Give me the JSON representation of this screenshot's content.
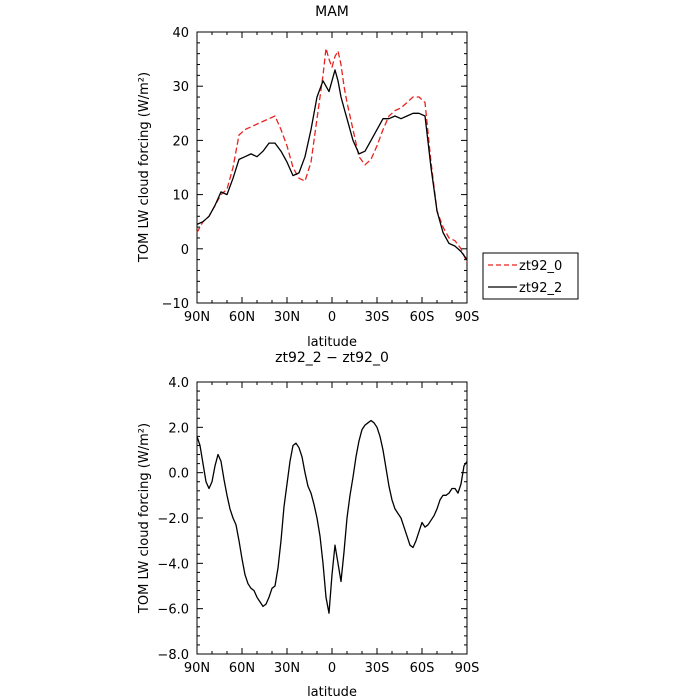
{
  "chart_data": [
    {
      "type": "line",
      "title": "MAM",
      "xlabel": "latitude",
      "ylabel": "TOM LW cloud forcing (W/m²)",
      "xlim": [
        90,
        -90
      ],
      "ylim": [
        -10,
        40
      ],
      "xticks": [
        90,
        60,
        30,
        0,
        -30,
        -60,
        -90
      ],
      "xtick_labels": [
        "90N",
        "60N",
        "30N",
        "0",
        "30S",
        "60S",
        "90S"
      ],
      "yticks": [
        -10,
        0,
        10,
        20,
        30,
        40
      ],
      "ytick_labels": [
        "−10",
        "0",
        "10",
        "20",
        "30",
        "40"
      ],
      "legend": "right",
      "series": [
        {
          "name": "zt92_0",
          "color": "#e8231f",
          "dash": "dashed",
          "x": [
            90,
            86,
            82,
            78,
            74,
            70,
            66,
            62,
            58,
            54,
            50,
            46,
            42,
            38,
            34,
            30,
            26,
            22,
            18,
            14,
            10,
            6,
            4,
            2,
            0,
            -2,
            -4,
            -6,
            -8,
            -10,
            -14,
            -18,
            -22,
            -26,
            -30,
            -34,
            -38,
            -42,
            -46,
            -50,
            -54,
            -58,
            -62,
            -66,
            -70,
            -74,
            -78,
            -82,
            -86,
            -90
          ],
          "y": [
            3,
            5,
            6,
            8,
            10,
            11,
            15,
            21,
            22,
            22.5,
            23,
            23.5,
            24,
            24.5,
            22,
            19,
            15,
            13,
            12.5,
            16,
            24,
            32,
            37,
            35,
            33.5,
            35.5,
            36.5,
            34,
            30,
            27,
            22,
            17,
            15.5,
            16.5,
            19,
            22,
            24.5,
            25.5,
            26,
            27,
            28,
            28,
            27,
            16,
            7,
            4,
            2,
            1.5,
            0,
            -2.5
          ]
        },
        {
          "name": "zt92_2",
          "color": "#000000",
          "dash": "solid",
          "x": [
            90,
            86,
            82,
            78,
            74,
            70,
            66,
            62,
            58,
            54,
            50,
            46,
            42,
            38,
            34,
            30,
            26,
            22,
            18,
            14,
            10,
            6,
            4,
            2,
            0,
            -2,
            -4,
            -6,
            -8,
            -10,
            -14,
            -18,
            -22,
            -26,
            -30,
            -34,
            -38,
            -42,
            -46,
            -50,
            -54,
            -58,
            -62,
            -66,
            -70,
            -74,
            -78,
            -82,
            -86,
            -90
          ],
          "y": [
            4.5,
            5,
            6,
            8,
            10.5,
            10,
            13,
            16.5,
            17,
            17.5,
            17,
            18,
            19.5,
            19.5,
            18,
            16,
            13.5,
            14,
            17,
            22,
            28,
            31,
            30,
            29,
            31,
            33,
            31,
            28,
            26,
            24,
            20,
            17.5,
            18,
            20,
            22,
            24,
            24,
            24.5,
            24,
            24.5,
            25,
            25,
            24.5,
            15,
            7,
            3,
            1,
            0.5,
            -0.5,
            -2
          ]
        }
      ]
    },
    {
      "type": "line",
      "title": "zt92_2 − zt92_0",
      "xlabel": "latitude",
      "ylabel": "TOM LW cloud forcing (W/m²)",
      "xlim": [
        90,
        -90
      ],
      "ylim": [
        -8,
        4
      ],
      "xticks": [
        90,
        60,
        30,
        0,
        -30,
        -60,
        -90
      ],
      "xtick_labels": [
        "90N",
        "60N",
        "30N",
        "0",
        "30S",
        "60S",
        "90S"
      ],
      "yticks": [
        -8,
        -6,
        -4,
        -2,
        0,
        2,
        4
      ],
      "ytick_labels": [
        "−8.0",
        "−6.0",
        "−4.0",
        "−2.0",
        "0.0",
        "2.0",
        "4.0"
      ],
      "series": [
        {
          "color": "#000000",
          "dash": "solid",
          "x": [
            90,
            88,
            86,
            84,
            82,
            80,
            78,
            76,
            74,
            72,
            70,
            68,
            66,
            64,
            62,
            60,
            58,
            56,
            54,
            52,
            50,
            48,
            46,
            44,
            42,
            40,
            38,
            36,
            34,
            32,
            30,
            28,
            26,
            24,
            22,
            20,
            18,
            16,
            14,
            12,
            10,
            8,
            6,
            4,
            2,
            0,
            -2,
            -4,
            -6,
            -8,
            -10,
            -12,
            -14,
            -16,
            -18,
            -20,
            -22,
            -24,
            -26,
            -28,
            -30,
            -32,
            -34,
            -36,
            -38,
            -40,
            -42,
            -44,
            -46,
            -48,
            -50,
            -52,
            -54,
            -56,
            -58,
            -60,
            -62,
            -64,
            -66,
            -68,
            -70,
            -72,
            -74,
            -76,
            -78,
            -80,
            -82,
            -84,
            -86,
            -88,
            -90
          ],
          "y": [
            1.6,
            1.2,
            0.4,
            -0.4,
            -0.7,
            -0.4,
            0.3,
            0.8,
            0.5,
            -0.3,
            -1.0,
            -1.6,
            -2.0,
            -2.3,
            -3.0,
            -3.8,
            -4.5,
            -4.9,
            -5.1,
            -5.2,
            -5.5,
            -5.7,
            -5.9,
            -5.8,
            -5.5,
            -5.1,
            -5.0,
            -4.2,
            -3.0,
            -1.5,
            -0.5,
            0.5,
            1.2,
            1.3,
            1.1,
            0.7,
            0.0,
            -0.6,
            -0.9,
            -1.4,
            -2.0,
            -2.8,
            -4.0,
            -5.5,
            -6.2,
            -4.5,
            -3.2,
            -4.0,
            -4.8,
            -3.5,
            -2.0,
            -1.0,
            -0.2,
            0.7,
            1.4,
            1.9,
            2.1,
            2.2,
            2.3,
            2.2,
            2.0,
            1.6,
            1.0,
            0.2,
            -0.6,
            -1.2,
            -1.6,
            -1.8,
            -2.0,
            -2.4,
            -2.8,
            -3.2,
            -3.3,
            -3.0,
            -2.6,
            -2.2,
            -2.4,
            -2.3,
            -2.1,
            -1.9,
            -1.6,
            -1.2,
            -1.0,
            -1.0,
            -0.9,
            -0.7,
            -0.7,
            -0.9,
            -0.5,
            0.3,
            0.5
          ]
        }
      ]
    }
  ]
}
